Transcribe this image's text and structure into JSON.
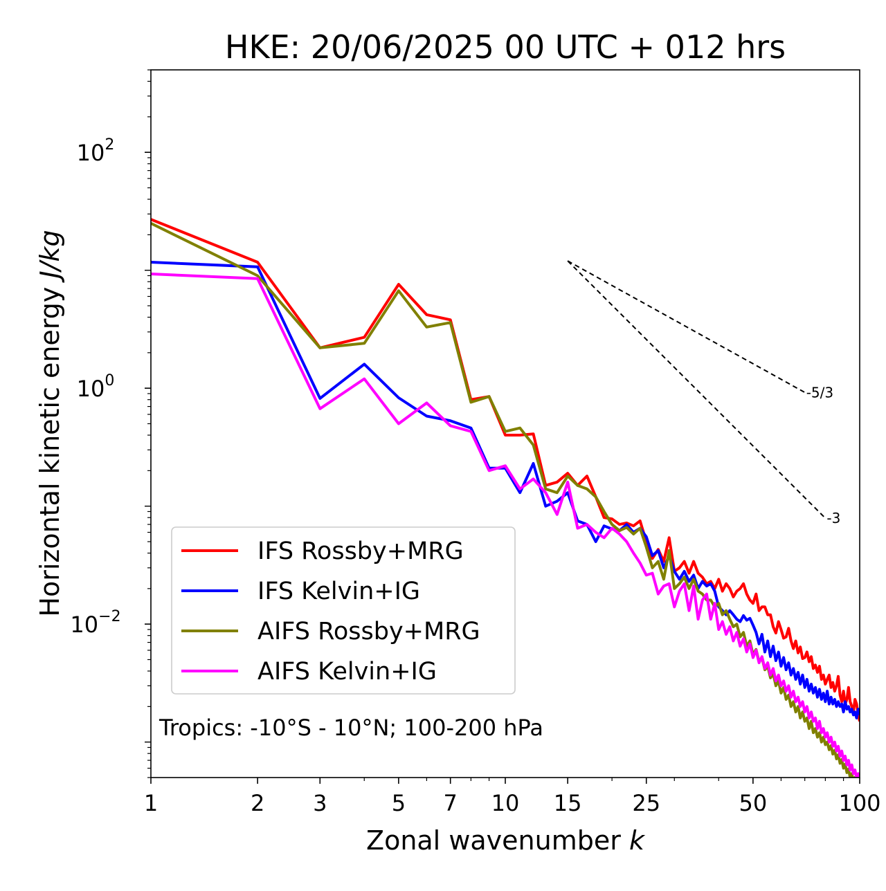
{
  "chart_data": {
    "type": "line",
    "title": "HKE: 20/06/2025 00 UTC + 012 hrs",
    "xlabel": "Zonal wavenumber ",
    "xlabel_italic": "k",
    "ylabel": "Horizontal kinetic energy ",
    "ylabel_italic": "J/kg",
    "x_scale": "log",
    "y_scale": "log",
    "xlim": [
      1,
      100
    ],
    "ylim": [
      0.0005,
      500
    ],
    "x_ticks": [
      1,
      2,
      3,
      5,
      7,
      10,
      15,
      25,
      50,
      100
    ],
    "x_tick_labels": [
      "1",
      "2",
      "3",
      "5",
      "7",
      "10",
      "15",
      "25",
      "50",
      "100"
    ],
    "y_ticks": [
      0.01,
      1,
      100
    ],
    "y_tick_labels": [
      {
        "base": "10",
        "exp": "−2"
      },
      {
        "base": "10",
        "exp": "0"
      },
      {
        "base": "10",
        "exp": "2"
      }
    ],
    "grid": false,
    "legend_position": "lower-left",
    "annotation": "Tropics: -10°S - 10°N; 100-200 hPa",
    "reference_lines": [
      {
        "label": "-5/3",
        "slope": -1.6667,
        "x_start": 15,
        "x_end": 70,
        "y_start": 12
      },
      {
        "label": "-3",
        "slope": -3,
        "x_start": 15,
        "x_end": 80,
        "y_start": 12
      }
    ],
    "series": [
      {
        "name": "IFS Rossby+MRG",
        "color": "#ff0000",
        "x": [
          1,
          2,
          3,
          4,
          5,
          6,
          7,
          8,
          9,
          10,
          11,
          12,
          13,
          14,
          15,
          16,
          17,
          18,
          19,
          20,
          21,
          22,
          23,
          24,
          25,
          26,
          27,
          28,
          29,
          30,
          31,
          32,
          33,
          34,
          35,
          36,
          37,
          38,
          39,
          40,
          41,
          42,
          43,
          44,
          45,
          46,
          47,
          48,
          49,
          50,
          51,
          52,
          53,
          54,
          55,
          56,
          57,
          58,
          59,
          60,
          61,
          62,
          63,
          64,
          65,
          66,
          67,
          68,
          69,
          70,
          71,
          72,
          73,
          74,
          75,
          76,
          77,
          78,
          79,
          80,
          81,
          82,
          83,
          84,
          85,
          86,
          87,
          88,
          89,
          90,
          91,
          92,
          93,
          94,
          95,
          96,
          97,
          98,
          99,
          100
        ],
        "y": [
          27,
          11.7,
          2.2,
          2.7,
          7.6,
          4.2,
          3.8,
          0.8,
          0.85,
          0.4,
          0.4,
          0.41,
          0.15,
          0.16,
          0.19,
          0.15,
          0.18,
          0.12,
          0.08,
          0.078,
          0.07,
          0.072,
          0.068,
          0.075,
          0.05,
          0.036,
          0.043,
          0.034,
          0.054,
          0.028,
          0.03,
          0.034,
          0.027,
          0.034,
          0.027,
          0.025,
          0.022,
          0.023,
          0.02,
          0.024,
          0.019,
          0.022,
          0.02,
          0.017,
          0.019,
          0.02,
          0.022,
          0.018,
          0.016,
          0.015,
          0.018,
          0.013,
          0.014,
          0.014,
          0.012,
          0.012,
          0.0095,
          0.0084,
          0.0105,
          0.009,
          0.0076,
          0.0078,
          0.0092,
          0.0072,
          0.0062,
          0.0072,
          0.0057,
          0.0064,
          0.0051,
          0.0052,
          0.0058,
          0.0048,
          0.0053,
          0.0042,
          0.0045,
          0.0039,
          0.0044,
          0.0034,
          0.0037,
          0.0031,
          0.0034,
          0.0037,
          0.0029,
          0.0032,
          0.0027,
          0.003,
          0.0036,
          0.0025,
          0.0022,
          0.0027,
          0.0021,
          0.0023,
          0.0029,
          0.0022,
          0.002,
          0.0018,
          0.0023,
          0.0021,
          0.0017,
          0.0015
        ]
      },
      {
        "name": "IFS Kelvin+IG",
        "color": "#0000ff",
        "x": [
          1,
          2,
          3,
          4,
          5,
          6,
          7,
          8,
          9,
          10,
          11,
          12,
          13,
          14,
          15,
          16,
          17,
          18,
          19,
          20,
          21,
          22,
          23,
          24,
          25,
          26,
          27,
          28,
          29,
          30,
          31,
          32,
          33,
          34,
          35,
          36,
          37,
          38,
          39,
          40,
          41,
          42,
          43,
          44,
          45,
          46,
          47,
          48,
          49,
          50,
          51,
          52,
          53,
          54,
          55,
          56,
          57,
          58,
          59,
          60,
          61,
          62,
          63,
          64,
          65,
          66,
          67,
          68,
          69,
          70,
          71,
          72,
          73,
          74,
          75,
          76,
          77,
          78,
          79,
          80,
          81,
          82,
          83,
          84,
          85,
          86,
          87,
          88,
          89,
          90,
          91,
          92,
          93,
          94,
          95,
          96,
          97,
          98,
          99,
          100
        ],
        "y": [
          11.7,
          10.7,
          0.82,
          1.6,
          0.83,
          0.58,
          0.53,
          0.46,
          0.21,
          0.21,
          0.13,
          0.23,
          0.1,
          0.11,
          0.13,
          0.075,
          0.07,
          0.05,
          0.068,
          0.064,
          0.062,
          0.07,
          0.06,
          0.065,
          0.055,
          0.038,
          0.042,
          0.03,
          0.038,
          0.028,
          0.024,
          0.028,
          0.023,
          0.026,
          0.02,
          0.023,
          0.021,
          0.022,
          0.019,
          0.014,
          0.013,
          0.012,
          0.013,
          0.012,
          0.011,
          0.0105,
          0.0118,
          0.0108,
          0.0112,
          0.0098,
          0.0085,
          0.0068,
          0.0082,
          0.0058,
          0.0072,
          0.0053,
          0.0065,
          0.0049,
          0.0058,
          0.0044,
          0.0052,
          0.0041,
          0.0047,
          0.0037,
          0.0042,
          0.0034,
          0.0039,
          0.0031,
          0.0037,
          0.0029,
          0.0034,
          0.0027,
          0.0031,
          0.0026,
          0.0029,
          0.0024,
          0.0028,
          0.0023,
          0.0026,
          0.0022,
          0.0027,
          0.0021,
          0.0024,
          0.0021,
          0.0023,
          0.002,
          0.0022,
          0.002,
          0.0021,
          0.0018,
          0.0022,
          0.0019,
          0.002,
          0.0018,
          0.0019,
          0.0017,
          0.0018,
          0.0016,
          0.0019,
          0.0017
        ]
      },
      {
        "name": "AIFS Rossby+MRG",
        "color": "#808000",
        "x": [
          1,
          2,
          3,
          4,
          5,
          6,
          7,
          8,
          9,
          10,
          11,
          12,
          13,
          14,
          15,
          16,
          17,
          18,
          19,
          20,
          21,
          22,
          23,
          24,
          25,
          26,
          27,
          28,
          29,
          30,
          31,
          32,
          33,
          34,
          35,
          36,
          37,
          38,
          39,
          40,
          41,
          42,
          43,
          44,
          45,
          46,
          47,
          48,
          49,
          50,
          51,
          52,
          53,
          54,
          55,
          56,
          57,
          58,
          59,
          60,
          61,
          62,
          63,
          64,
          65,
          66,
          67,
          68,
          69,
          70,
          71,
          72,
          73,
          74,
          75,
          76,
          77,
          78,
          79,
          80,
          81,
          82,
          83,
          84,
          85,
          86,
          87,
          88,
          89,
          90,
          91,
          92,
          93,
          94,
          95,
          96,
          97,
          98,
          99,
          100
        ],
        "y": [
          25,
          9,
          2.2,
          2.4,
          6.7,
          3.3,
          3.6,
          0.76,
          0.85,
          0.43,
          0.46,
          0.33,
          0.14,
          0.13,
          0.18,
          0.15,
          0.14,
          0.12,
          0.09,
          0.07,
          0.062,
          0.066,
          0.058,
          0.065,
          0.045,
          0.03,
          0.034,
          0.024,
          0.042,
          0.02,
          0.022,
          0.025,
          0.02,
          0.024,
          0.019,
          0.018,
          0.016,
          0.016,
          0.014,
          0.015,
          0.012,
          0.013,
          0.011,
          0.0095,
          0.01,
          0.0078,
          0.0085,
          0.0065,
          0.0072,
          0.0055,
          0.0061,
          0.0048,
          0.0052,
          0.0041,
          0.0044,
          0.0035,
          0.0038,
          0.003,
          0.0033,
          0.0026,
          0.0029,
          0.0023,
          0.0025,
          0.002,
          0.0022,
          0.0018,
          0.002,
          0.0016,
          0.0018,
          0.0015,
          0.0016,
          0.0013,
          0.0015,
          0.0012,
          0.0013,
          0.0011,
          0.0012,
          0.001,
          0.0011,
          0.00095,
          0.001,
          0.00086,
          0.00093,
          0.00079,
          0.00085,
          0.00072,
          0.00078,
          0.00066,
          0.00071,
          0.0006,
          0.00065,
          0.00055,
          0.00059,
          0.0005,
          0.00054,
          0.00046,
          0.0005,
          0.00042,
          0.00046,
          0.00039
        ]
      },
      {
        "name": "AIFS Kelvin+IG",
        "color": "#ff00ff",
        "x": [
          1,
          2,
          3,
          4,
          5,
          6,
          7,
          8,
          9,
          10,
          11,
          12,
          13,
          14,
          15,
          16,
          17,
          18,
          19,
          20,
          21,
          22,
          23,
          24,
          25,
          26,
          27,
          28,
          29,
          30,
          31,
          32,
          33,
          34,
          35,
          36,
          37,
          38,
          39,
          40,
          41,
          42,
          43,
          44,
          45,
          46,
          47,
          48,
          49,
          50,
          51,
          52,
          53,
          54,
          55,
          56,
          57,
          58,
          59,
          60,
          61,
          62,
          63,
          64,
          65,
          66,
          67,
          68,
          69,
          70,
          71,
          72,
          73,
          74,
          75,
          76,
          77,
          78,
          79,
          80,
          81,
          82,
          83,
          84,
          85,
          86,
          87,
          88,
          89,
          90,
          91,
          92,
          93,
          94,
          95,
          96,
          97,
          98,
          99,
          100
        ],
        "y": [
          9.3,
          8.5,
          0.67,
          1.2,
          0.5,
          0.75,
          0.48,
          0.43,
          0.2,
          0.22,
          0.14,
          0.17,
          0.13,
          0.085,
          0.16,
          0.065,
          0.07,
          0.06,
          0.054,
          0.065,
          0.058,
          0.05,
          0.04,
          0.033,
          0.026,
          0.027,
          0.018,
          0.021,
          0.022,
          0.014,
          0.019,
          0.022,
          0.013,
          0.021,
          0.011,
          0.016,
          0.018,
          0.011,
          0.015,
          0.009,
          0.0105,
          0.0082,
          0.0095,
          0.0072,
          0.0085,
          0.0065,
          0.0075,
          0.0058,
          0.0068,
          0.0052,
          0.006,
          0.0047,
          0.0053,
          0.0042,
          0.0047,
          0.0037,
          0.0042,
          0.0033,
          0.0037,
          0.003,
          0.0033,
          0.0027,
          0.003,
          0.0024,
          0.0027,
          0.0022,
          0.0024,
          0.002,
          0.0022,
          0.0018,
          0.002,
          0.0016,
          0.0018,
          0.0015,
          0.0016,
          0.0013,
          0.0015,
          0.0012,
          0.0013,
          0.0011,
          0.0012,
          0.001,
          0.0011,
          0.00092,
          0.001,
          0.00084,
          0.00092,
          0.00076,
          0.00084,
          0.0007,
          0.00076,
          0.00064,
          0.0007,
          0.00058,
          0.00064,
          0.00054,
          0.00058,
          0.00049,
          0.00054,
          0.00045
        ]
      }
    ]
  }
}
